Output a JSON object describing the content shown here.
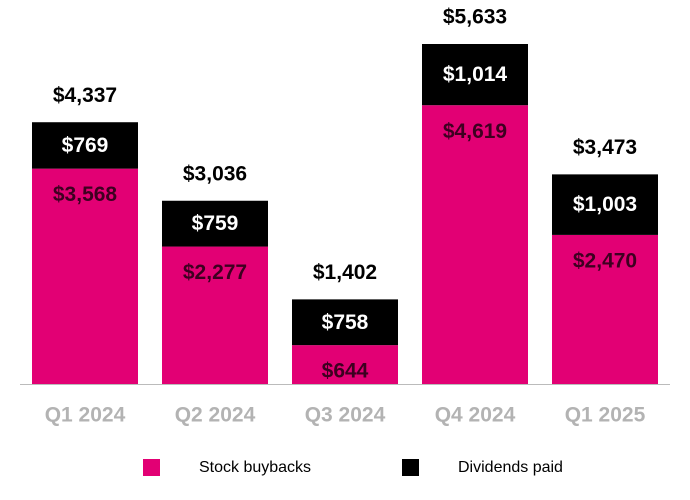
{
  "chart_data": {
    "type": "stacked_bar",
    "categories": [
      "Q1 2024",
      "Q2 2024",
      "Q3 2024",
      "Q4 2024",
      "Q1 2025"
    ],
    "series": [
      {
        "name": "Stock buybacks",
        "color": "#e20074",
        "values": [
          3568,
          2277,
          644,
          4619,
          2470
        ],
        "value_labels": [
          "$3,568",
          "$2,277",
          "$644",
          "$4,619",
          "$2,470"
        ]
      },
      {
        "name": "Dividends paid",
        "color": "#000000",
        "values": [
          769,
          759,
          758,
          1014,
          1003
        ],
        "value_labels": [
          "$769",
          "$759",
          "$758",
          "$1,014",
          "$1,003"
        ]
      }
    ],
    "totals": {
      "values": [
        4337,
        3036,
        1402,
        5633,
        3473
      ],
      "value_labels": [
        "$4,337",
        "$3,036",
        "$1,402",
        "$5,633",
        "$3,473"
      ]
    }
  }
}
